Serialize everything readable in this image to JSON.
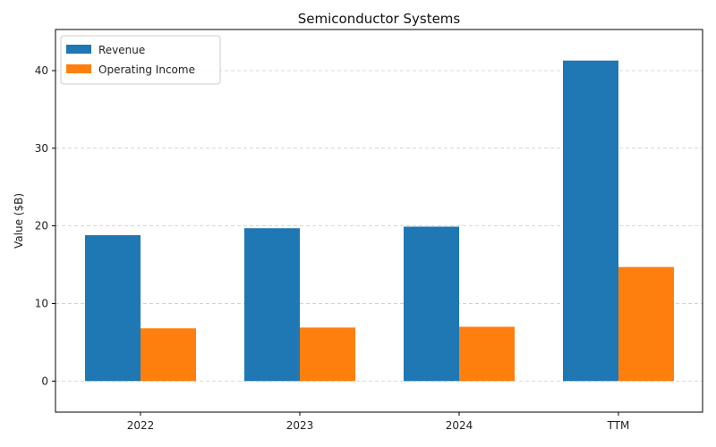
{
  "chart_data": {
    "type": "bar",
    "title": "Semiconductor Systems",
    "xlabel": "",
    "ylabel": "Value ($B)",
    "categories": [
      "2022",
      "2023",
      "2024",
      "TTM"
    ],
    "series": [
      {
        "name": "Revenue",
        "color": "#1f77b4",
        "values": [
          18.8,
          19.7,
          19.9,
          41.3
        ]
      },
      {
        "name": "Operating Income",
        "color": "#ff7f0e",
        "values": [
          6.8,
          6.9,
          7.0,
          14.7
        ]
      }
    ],
    "ylim": [
      -4,
      45.3
    ],
    "yticks": [
      0,
      10,
      20,
      30,
      40
    ],
    "grid": "y-dashed",
    "legend_position": "top-left"
  }
}
